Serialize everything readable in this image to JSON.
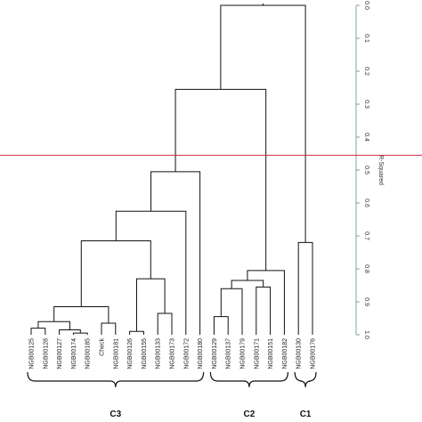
{
  "chart_data": {
    "type": "dendrogram",
    "yaxis": {
      "label": "R-Squared",
      "range": [
        0.0,
        1.0
      ],
      "ticks": [
        "0.0",
        "0.1",
        "0.2",
        "0.3",
        "0.4",
        "0.5",
        "0.6",
        "0.7",
        "0.8",
        "0.9",
        "1.0"
      ],
      "color": "#7fa3a3"
    },
    "cut_line": {
      "value": 0.455,
      "color": "#d0303c"
    },
    "leaves": [
      "NGB00125",
      "NGB00128",
      "NGB00127",
      "NGB00174",
      "NGB00185",
      "Check",
      "NGB00181",
      "NGB00126",
      "NGB00155",
      "NGB00133",
      "NGB00173",
      "NGB00172",
      "NGB00180",
      "NGB00129",
      "NGB00137",
      "NGB00179",
      "NGB00171",
      "NGB00151",
      "NGB00182",
      "NGB00130",
      "NGB00176"
    ],
    "merges": [
      {
        "a": "L0",
        "b": "L1",
        "height": 0.98
      },
      {
        "a": "L3",
        "b": "L4",
        "height": 0.995
      },
      {
        "a": "L2",
        "b": "M1",
        "height": 0.985
      },
      {
        "a": "M0",
        "b": "M2",
        "height": 0.96
      },
      {
        "a": "L5",
        "b": "L6",
        "height": 0.965
      },
      {
        "a": "M3",
        "b": "M4",
        "height": 0.915
      },
      {
        "a": "L7",
        "b": "L8",
        "height": 0.99
      },
      {
        "a": "L9",
        "b": "L10",
        "height": 0.935
      },
      {
        "a": "M6",
        "b": "M7",
        "height": 0.83
      },
      {
        "a": "M5",
        "b": "M8",
        "height": 0.715
      },
      {
        "a": "M9",
        "b": "L11",
        "height": 0.625
      },
      {
        "a": "M10",
        "b": "L12",
        "height": 0.505
      },
      {
        "a": "L13",
        "b": "L14",
        "height": 0.945
      },
      {
        "a": "M12",
        "b": "L15",
        "height": 0.86
      },
      {
        "a": "L16",
        "b": "L17",
        "height": 0.855
      },
      {
        "a": "M13",
        "b": "M14",
        "height": 0.835
      },
      {
        "a": "M15",
        "b": "L18",
        "height": 0.805
      },
      {
        "a": "M11",
        "b": "M16",
        "height": 0.255
      },
      {
        "a": "L19",
        "b": "L20",
        "height": 0.72
      },
      {
        "a": "M17",
        "b": "M18",
        "height": 0.0
      }
    ],
    "clusters": [
      {
        "label": "C3",
        "from": 0,
        "to": 12
      },
      {
        "label": "C2",
        "from": 13,
        "to": 18
      },
      {
        "label": "C1",
        "from": 19,
        "to": 20
      }
    ]
  }
}
